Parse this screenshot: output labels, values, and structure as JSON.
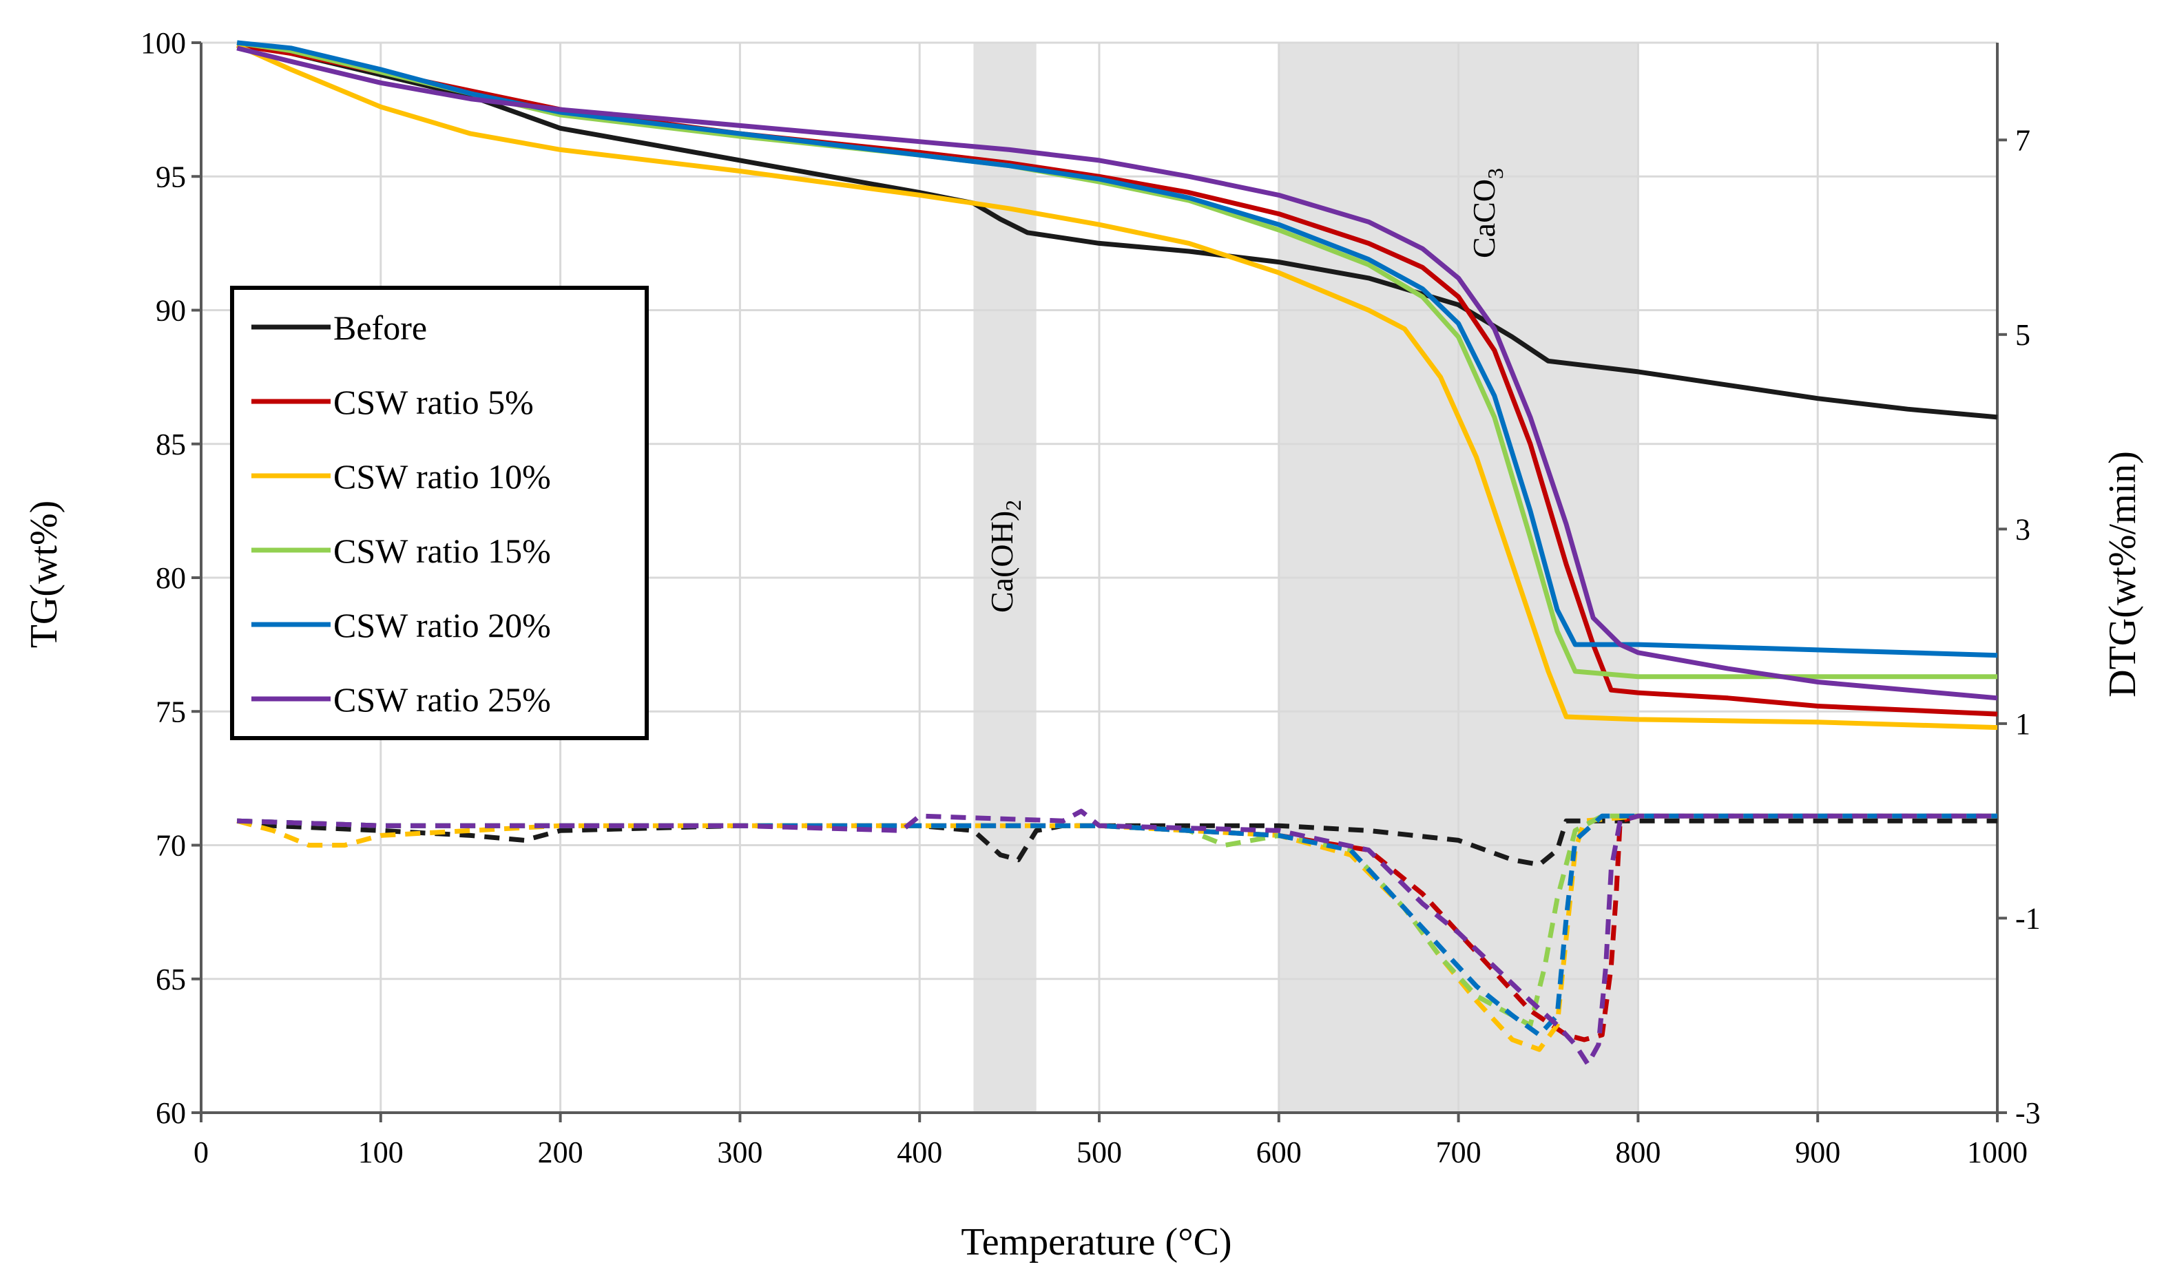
{
  "chart_data": {
    "type": "line",
    "xlabel": "Temperature  (°C)",
    "ylabel": "TG(wt%)",
    "y2label": "DTG(wt%/min)",
    "xlim": [
      0,
      1000
    ],
    "ylim": [
      60,
      100
    ],
    "y2lim": [
      -3,
      8
    ],
    "grid": true,
    "legend_position": "left-center",
    "x_ticks": [
      "0",
      "100",
      "200",
      "300",
      "400",
      "500",
      "600",
      "700",
      "800",
      "900",
      "1000"
    ],
    "y_ticks": [
      "60",
      "65",
      "70",
      "75",
      "80",
      "85",
      "90",
      "95",
      "100"
    ],
    "y2_ticks": [
      "-3",
      "-1",
      "1",
      "3",
      "5",
      "7"
    ],
    "bands": [
      {
        "x0": 430,
        "x1": 465,
        "label_main": "Ca(OH)",
        "label_sub": "2"
      },
      {
        "x0": 600,
        "x1": 800,
        "label_main": "CaCO",
        "label_sub": "3"
      }
    ],
    "series": [
      {
        "name": "Before",
        "color": "#1a1a1a",
        "tg": [
          [
            20,
            100
          ],
          [
            50,
            99.6
          ],
          [
            100,
            98.8
          ],
          [
            150,
            98
          ],
          [
            200,
            96.8
          ],
          [
            250,
            96.2
          ],
          [
            300,
            95.6
          ],
          [
            350,
            95
          ],
          [
            400,
            94.4
          ],
          [
            430,
            94
          ],
          [
            445,
            93.4
          ],
          [
            460,
            92.9
          ],
          [
            500,
            92.5
          ],
          [
            550,
            92.2
          ],
          [
            600,
            91.8
          ],
          [
            650,
            91.2
          ],
          [
            700,
            90.2
          ],
          [
            730,
            89
          ],
          [
            750,
            88.1
          ],
          [
            800,
            87.7
          ],
          [
            850,
            87.2
          ],
          [
            900,
            86.7
          ],
          [
            950,
            86.3
          ],
          [
            1000,
            86
          ]
        ],
        "dtg": [
          [
            20,
            0
          ],
          [
            40,
            -0.05
          ],
          [
            100,
            -0.1
          ],
          [
            150,
            -0.15
          ],
          [
            180,
            -0.2
          ],
          [
            200,
            -0.1
          ],
          [
            300,
            -0.05
          ],
          [
            400,
            -0.05
          ],
          [
            430,
            -0.1
          ],
          [
            445,
            -0.35
          ],
          [
            455,
            -0.4
          ],
          [
            465,
            -0.1
          ],
          [
            480,
            -0.05
          ],
          [
            550,
            -0.05
          ],
          [
            600,
            -0.05
          ],
          [
            650,
            -0.1
          ],
          [
            700,
            -0.2
          ],
          [
            730,
            -0.4
          ],
          [
            745,
            -0.45
          ],
          [
            755,
            -0.3
          ],
          [
            760,
            0
          ],
          [
            800,
            0
          ],
          [
            1000,
            0
          ]
        ]
      },
      {
        "name": "CSW ratio 5%",
        "color": "#c00000",
        "tg": [
          [
            20,
            99.9
          ],
          [
            50,
            99.6
          ],
          [
            100,
            98.9
          ],
          [
            150,
            98.2
          ],
          [
            200,
            97.5
          ],
          [
            300,
            96.6
          ],
          [
            400,
            95.9
          ],
          [
            450,
            95.5
          ],
          [
            500,
            95
          ],
          [
            550,
            94.4
          ],
          [
            600,
            93.6
          ],
          [
            650,
            92.5
          ],
          [
            680,
            91.6
          ],
          [
            700,
            90.5
          ],
          [
            720,
            88.5
          ],
          [
            740,
            85
          ],
          [
            760,
            80.5
          ],
          [
            775,
            77.5
          ],
          [
            785,
            75.8
          ],
          [
            800,
            75.7
          ],
          [
            850,
            75.5
          ],
          [
            900,
            75.2
          ],
          [
            1000,
            74.9
          ]
        ],
        "dtg": [
          [
            20,
            0
          ],
          [
            100,
            -0.05
          ],
          [
            200,
            -0.05
          ],
          [
            300,
            -0.05
          ],
          [
            400,
            -0.05
          ],
          [
            500,
            -0.05
          ],
          [
            600,
            -0.15
          ],
          [
            650,
            -0.3
          ],
          [
            680,
            -0.75
          ],
          [
            700,
            -1.15
          ],
          [
            720,
            -1.55
          ],
          [
            740,
            -1.95
          ],
          [
            760,
            -2.2
          ],
          [
            770,
            -2.25
          ],
          [
            780,
            -2.2
          ],
          [
            785,
            -1.5
          ],
          [
            788,
            -0.7
          ],
          [
            790,
            0
          ],
          [
            800,
            0.05
          ],
          [
            1000,
            0.05
          ]
        ]
      },
      {
        "name": "CSW ratio 10%",
        "color": "#ffc000",
        "tg": [
          [
            20,
            99.9
          ],
          [
            50,
            99
          ],
          [
            100,
            97.6
          ],
          [
            150,
            96.6
          ],
          [
            200,
            96
          ],
          [
            300,
            95.2
          ],
          [
            400,
            94.3
          ],
          [
            450,
            93.8
          ],
          [
            500,
            93.2
          ],
          [
            550,
            92.5
          ],
          [
            600,
            91.4
          ],
          [
            650,
            90
          ],
          [
            670,
            89.3
          ],
          [
            690,
            87.5
          ],
          [
            710,
            84.5
          ],
          [
            730,
            80.5
          ],
          [
            750,
            76.5
          ],
          [
            760,
            74.8
          ],
          [
            800,
            74.7
          ],
          [
            900,
            74.6
          ],
          [
            1000,
            74.4
          ]
        ],
        "dtg": [
          [
            20,
            0
          ],
          [
            40,
            -0.1
          ],
          [
            60,
            -0.25
          ],
          [
            80,
            -0.25
          ],
          [
            100,
            -0.15
          ],
          [
            150,
            -0.1
          ],
          [
            200,
            -0.05
          ],
          [
            300,
            -0.05
          ],
          [
            400,
            -0.05
          ],
          [
            500,
            -0.05
          ],
          [
            600,
            -0.15
          ],
          [
            640,
            -0.35
          ],
          [
            670,
            -0.9
          ],
          [
            690,
            -1.4
          ],
          [
            710,
            -1.85
          ],
          [
            730,
            -2.25
          ],
          [
            745,
            -2.35
          ],
          [
            755,
            -2.1
          ],
          [
            760,
            -1.2
          ],
          [
            765,
            -0.3
          ],
          [
            770,
            0
          ],
          [
            800,
            0.05
          ],
          [
            1000,
            0.05
          ]
        ]
      },
      {
        "name": "CSW ratio 15%",
        "color": "#92d050",
        "tg": [
          [
            20,
            100
          ],
          [
            50,
            99.7
          ],
          [
            100,
            98.9
          ],
          [
            150,
            98.1
          ],
          [
            200,
            97.3
          ],
          [
            300,
            96.5
          ],
          [
            400,
            95.8
          ],
          [
            450,
            95.4
          ],
          [
            500,
            94.8
          ],
          [
            550,
            94.1
          ],
          [
            600,
            93
          ],
          [
            650,
            91.7
          ],
          [
            680,
            90.5
          ],
          [
            700,
            89
          ],
          [
            720,
            86
          ],
          [
            740,
            81.5
          ],
          [
            755,
            78
          ],
          [
            765,
            76.5
          ],
          [
            800,
            76.3
          ],
          [
            900,
            76.3
          ],
          [
            1000,
            76.3
          ]
        ],
        "dtg": [
          [
            20,
            0
          ],
          [
            100,
            -0.05
          ],
          [
            200,
            -0.05
          ],
          [
            300,
            -0.05
          ],
          [
            400,
            -0.05
          ],
          [
            500,
            -0.05
          ],
          [
            550,
            -0.1
          ],
          [
            570,
            -0.25
          ],
          [
            600,
            -0.15
          ],
          [
            640,
            -0.3
          ],
          [
            670,
            -0.9
          ],
          [
            690,
            -1.4
          ],
          [
            710,
            -1.8
          ],
          [
            730,
            -2.0
          ],
          [
            740,
            -2.1
          ],
          [
            748,
            -1.5
          ],
          [
            755,
            -0.8
          ],
          [
            765,
            -0.1
          ],
          [
            780,
            0.05
          ],
          [
            1000,
            0.05
          ]
        ]
      },
      {
        "name": "CSW ratio 20%",
        "color": "#0070c0",
        "tg": [
          [
            20,
            100
          ],
          [
            50,
            99.8
          ],
          [
            100,
            99
          ],
          [
            150,
            98.1
          ],
          [
            200,
            97.4
          ],
          [
            300,
            96.6
          ],
          [
            400,
            95.8
          ],
          [
            450,
            95.4
          ],
          [
            500,
            94.9
          ],
          [
            550,
            94.2
          ],
          [
            600,
            93.2
          ],
          [
            650,
            91.9
          ],
          [
            680,
            90.8
          ],
          [
            700,
            89.5
          ],
          [
            720,
            86.8
          ],
          [
            740,
            82.5
          ],
          [
            755,
            78.8
          ],
          [
            765,
            77.5
          ],
          [
            800,
            77.5
          ],
          [
            900,
            77.3
          ],
          [
            1000,
            77.1
          ]
        ],
        "dtg": [
          [
            20,
            0
          ],
          [
            100,
            -0.05
          ],
          [
            200,
            -0.05
          ],
          [
            300,
            -0.05
          ],
          [
            400,
            -0.05
          ],
          [
            500,
            -0.05
          ],
          [
            600,
            -0.15
          ],
          [
            640,
            -0.3
          ],
          [
            670,
            -0.9
          ],
          [
            690,
            -1.3
          ],
          [
            710,
            -1.7
          ],
          [
            730,
            -2.0
          ],
          [
            745,
            -2.2
          ],
          [
            755,
            -2.0
          ],
          [
            760,
            -1.0
          ],
          [
            765,
            -0.2
          ],
          [
            780,
            0.05
          ],
          [
            1000,
            0.05
          ]
        ]
      },
      {
        "name": "CSW ratio 25%",
        "color": "#7030a0",
        "tg": [
          [
            20,
            99.8
          ],
          [
            50,
            99.3
          ],
          [
            100,
            98.5
          ],
          [
            150,
            97.9
          ],
          [
            200,
            97.5
          ],
          [
            300,
            96.9
          ],
          [
            400,
            96.3
          ],
          [
            450,
            96
          ],
          [
            500,
            95.6
          ],
          [
            550,
            95
          ],
          [
            600,
            94.3
          ],
          [
            650,
            93.3
          ],
          [
            680,
            92.3
          ],
          [
            700,
            91.2
          ],
          [
            720,
            89.3
          ],
          [
            740,
            86
          ],
          [
            760,
            82
          ],
          [
            775,
            78.5
          ],
          [
            790,
            77.5
          ],
          [
            800,
            77.2
          ],
          [
            850,
            76.6
          ],
          [
            900,
            76.1
          ],
          [
            1000,
            75.5
          ]
        ],
        "dtg": [
          [
            20,
            0
          ],
          [
            100,
            -0.05
          ],
          [
            200,
            -0.05
          ],
          [
            300,
            -0.05
          ],
          [
            390,
            -0.1
          ],
          [
            400,
            0.05
          ],
          [
            480,
            0
          ],
          [
            490,
            0.1
          ],
          [
            500,
            -0.05
          ],
          [
            600,
            -0.1
          ],
          [
            650,
            -0.3
          ],
          [
            680,
            -0.85
          ],
          [
            700,
            -1.15
          ],
          [
            720,
            -1.5
          ],
          [
            740,
            -1.85
          ],
          [
            755,
            -2.1
          ],
          [
            765,
            -2.3
          ],
          [
            772,
            -2.5
          ],
          [
            778,
            -2.3
          ],
          [
            782,
            -1.5
          ],
          [
            785,
            -0.5
          ],
          [
            790,
            0
          ],
          [
            800,
            0.05
          ],
          [
            1000,
            0.05
          ]
        ]
      }
    ]
  }
}
